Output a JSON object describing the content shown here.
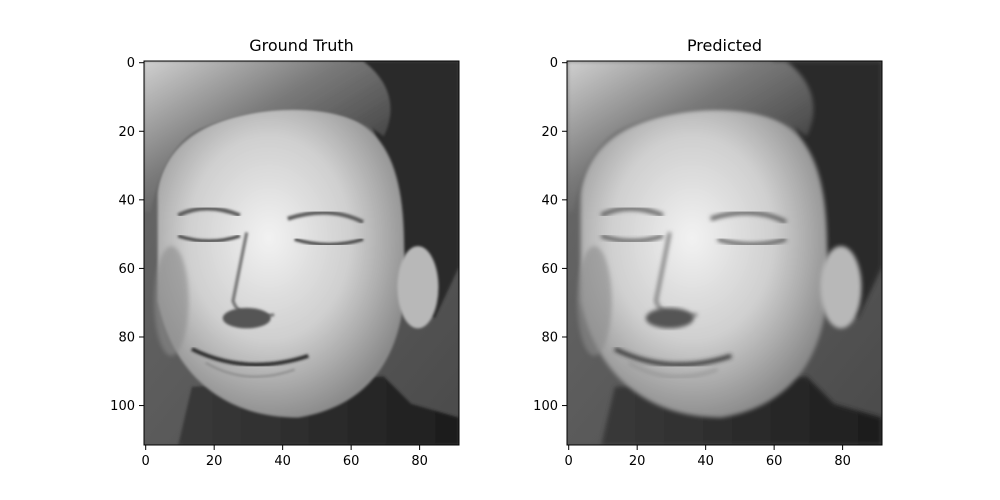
{
  "panels": [
    {
      "title": "Ground Truth",
      "x_ticks": [
        "0",
        "20",
        "40",
        "60",
        "80"
      ],
      "y_ticks": [
        "0",
        "20",
        "40",
        "60",
        "80",
        "100"
      ],
      "image_content": "grayscale face photo"
    },
    {
      "title": "Predicted",
      "x_ticks": [
        "0",
        "20",
        "40",
        "60",
        "80"
      ],
      "y_ticks": [
        "0",
        "20",
        "40",
        "60",
        "80",
        "100"
      ],
      "image_content": "grayscale face photo (smoother reconstruction)"
    }
  ]
}
